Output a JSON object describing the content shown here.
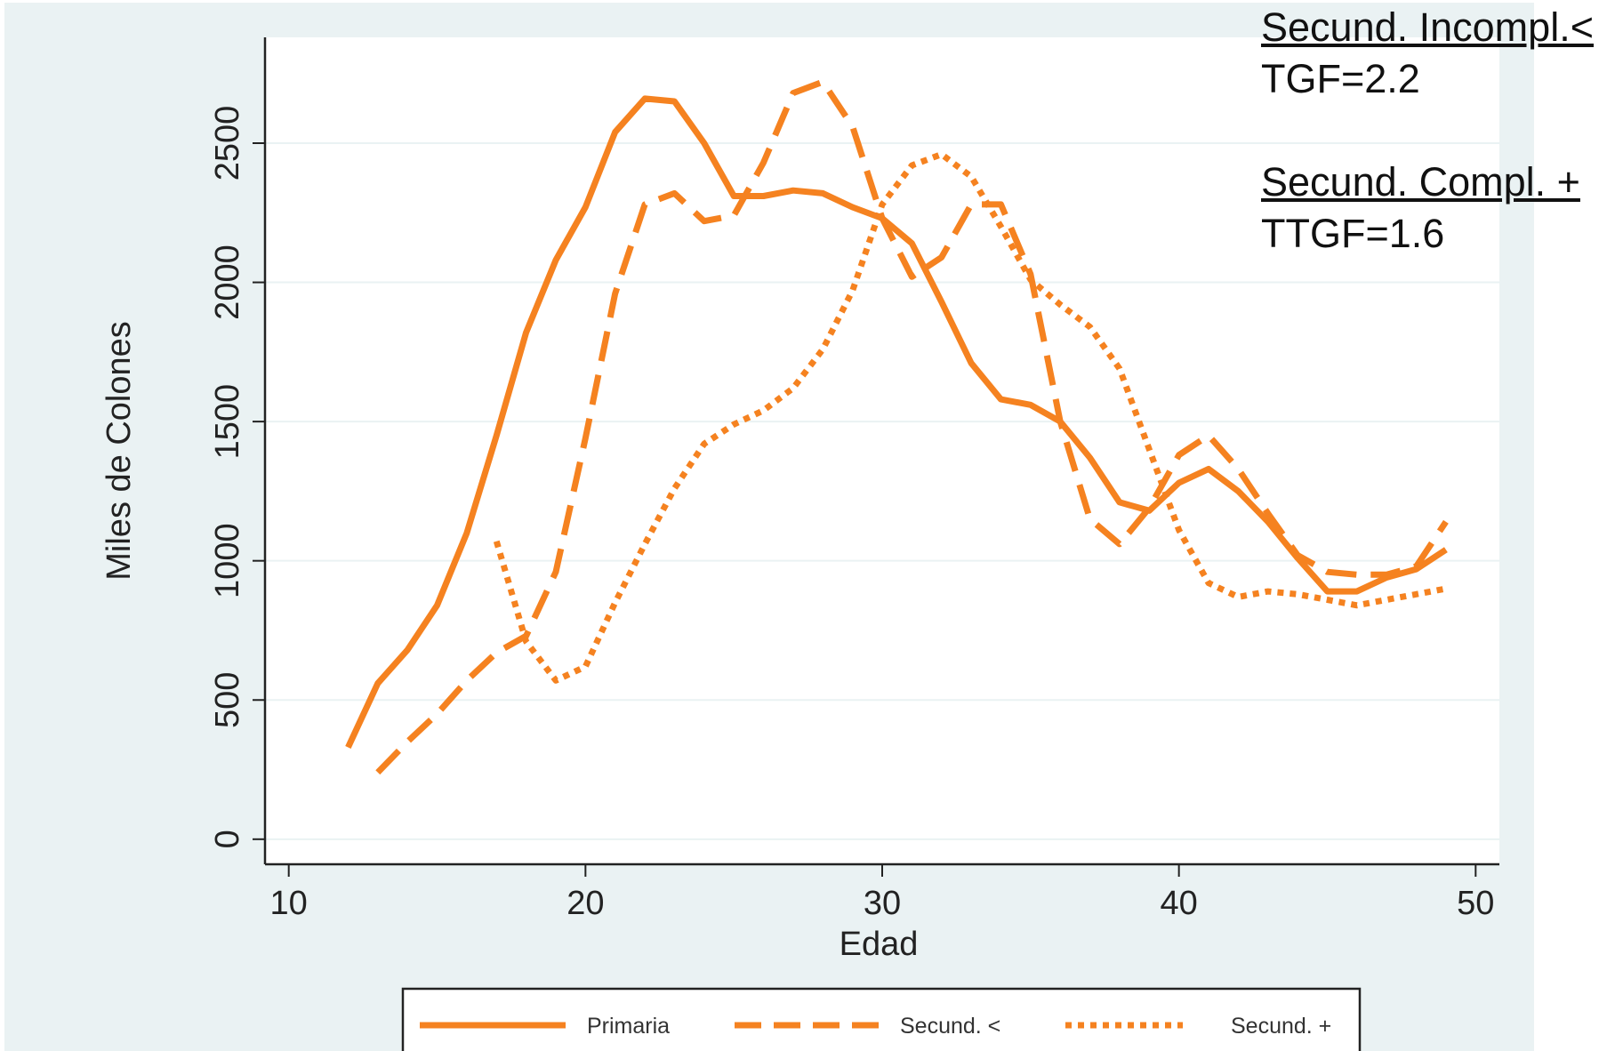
{
  "chart_data": {
    "type": "line",
    "title": "",
    "xlabel": "Edad",
    "ylabel": "Miles de Colones",
    "xlim": [
      9.2,
      50.8
    ],
    "ylim": [
      -90,
      2880
    ],
    "x_ticks": [
      10,
      20,
      30,
      40,
      50
    ],
    "y_ticks": [
      0,
      500,
      1000,
      1500,
      2000,
      2500
    ],
    "grid": true,
    "legend_position": "bottom",
    "series": [
      {
        "name": "Primaria",
        "style": "solid",
        "color": "#f58220",
        "points": [
          [
            12,
            330
          ],
          [
            13,
            560
          ],
          [
            14,
            680
          ],
          [
            15,
            840
          ],
          [
            16,
            1100
          ],
          [
            17,
            1450
          ],
          [
            18,
            1820
          ],
          [
            19,
            2080
          ],
          [
            20,
            2270
          ],
          [
            21,
            2540
          ],
          [
            22,
            2660
          ],
          [
            23,
            2650
          ],
          [
            24,
            2500
          ],
          [
            25,
            2310
          ],
          [
            26,
            2310
          ],
          [
            27,
            2330
          ],
          [
            28,
            2320
          ],
          [
            29,
            2270
          ],
          [
            30,
            2230
          ],
          [
            31,
            2140
          ],
          [
            32,
            1930
          ],
          [
            33,
            1710
          ],
          [
            34,
            1580
          ],
          [
            35,
            1560
          ],
          [
            36,
            1500
          ],
          [
            37,
            1370
          ],
          [
            38,
            1210
          ],
          [
            39,
            1180
          ],
          [
            40,
            1280
          ],
          [
            41,
            1330
          ],
          [
            42,
            1250
          ],
          [
            43,
            1140
          ],
          [
            44,
            1010
          ],
          [
            45,
            890
          ],
          [
            46,
            890
          ],
          [
            47,
            940
          ],
          [
            48,
            970
          ],
          [
            49,
            1040
          ]
        ]
      },
      {
        "name": "Secund. <",
        "style": "dashed",
        "color": "#f58220",
        "points": [
          [
            13,
            240
          ],
          [
            14,
            350
          ],
          [
            15,
            450
          ],
          [
            16,
            570
          ],
          [
            17,
            670
          ],
          [
            18,
            730
          ],
          [
            19,
            960
          ],
          [
            20,
            1440
          ],
          [
            21,
            1960
          ],
          [
            22,
            2280
          ],
          [
            23,
            2320
          ],
          [
            24,
            2220
          ],
          [
            25,
            2240
          ],
          [
            26,
            2430
          ],
          [
            27,
            2680
          ],
          [
            28,
            2720
          ],
          [
            29,
            2560
          ],
          [
            30,
            2230
          ],
          [
            31,
            2020
          ],
          [
            32,
            2090
          ],
          [
            33,
            2280
          ],
          [
            34,
            2280
          ],
          [
            35,
            2030
          ],
          [
            36,
            1500
          ],
          [
            37,
            1150
          ],
          [
            38,
            1060
          ],
          [
            39,
            1190
          ],
          [
            40,
            1380
          ],
          [
            41,
            1450
          ],
          [
            42,
            1330
          ],
          [
            43,
            1170
          ],
          [
            44,
            1020
          ],
          [
            45,
            960
          ],
          [
            46,
            950
          ],
          [
            47,
            950
          ],
          [
            48,
            980
          ],
          [
            49,
            1140
          ]
        ]
      },
      {
        "name": "Secund. +",
        "style": "dotted",
        "color": "#f58220",
        "points": [
          [
            17,
            1070
          ],
          [
            18,
            710
          ],
          [
            19,
            570
          ],
          [
            20,
            620
          ],
          [
            21,
            850
          ],
          [
            22,
            1060
          ],
          [
            23,
            1260
          ],
          [
            24,
            1420
          ],
          [
            25,
            1490
          ],
          [
            26,
            1540
          ],
          [
            27,
            1620
          ],
          [
            28,
            1760
          ],
          [
            29,
            1970
          ],
          [
            30,
            2280
          ],
          [
            31,
            2420
          ],
          [
            32,
            2460
          ],
          [
            33,
            2380
          ],
          [
            34,
            2200
          ],
          [
            35,
            2010
          ],
          [
            36,
            1920
          ],
          [
            37,
            1840
          ],
          [
            38,
            1690
          ],
          [
            39,
            1400
          ],
          [
            40,
            1110
          ],
          [
            41,
            920
          ],
          [
            42,
            870
          ],
          [
            43,
            890
          ],
          [
            44,
            880
          ],
          [
            45,
            860
          ],
          [
            46,
            840
          ],
          [
            47,
            860
          ],
          [
            48,
            880
          ],
          [
            49,
            900
          ]
        ]
      }
    ]
  },
  "annotations": [
    "Secund. Incompl.<",
    "TGF=2.2",
    "Secund. Compl. +",
    "TTGF=1.6"
  ]
}
